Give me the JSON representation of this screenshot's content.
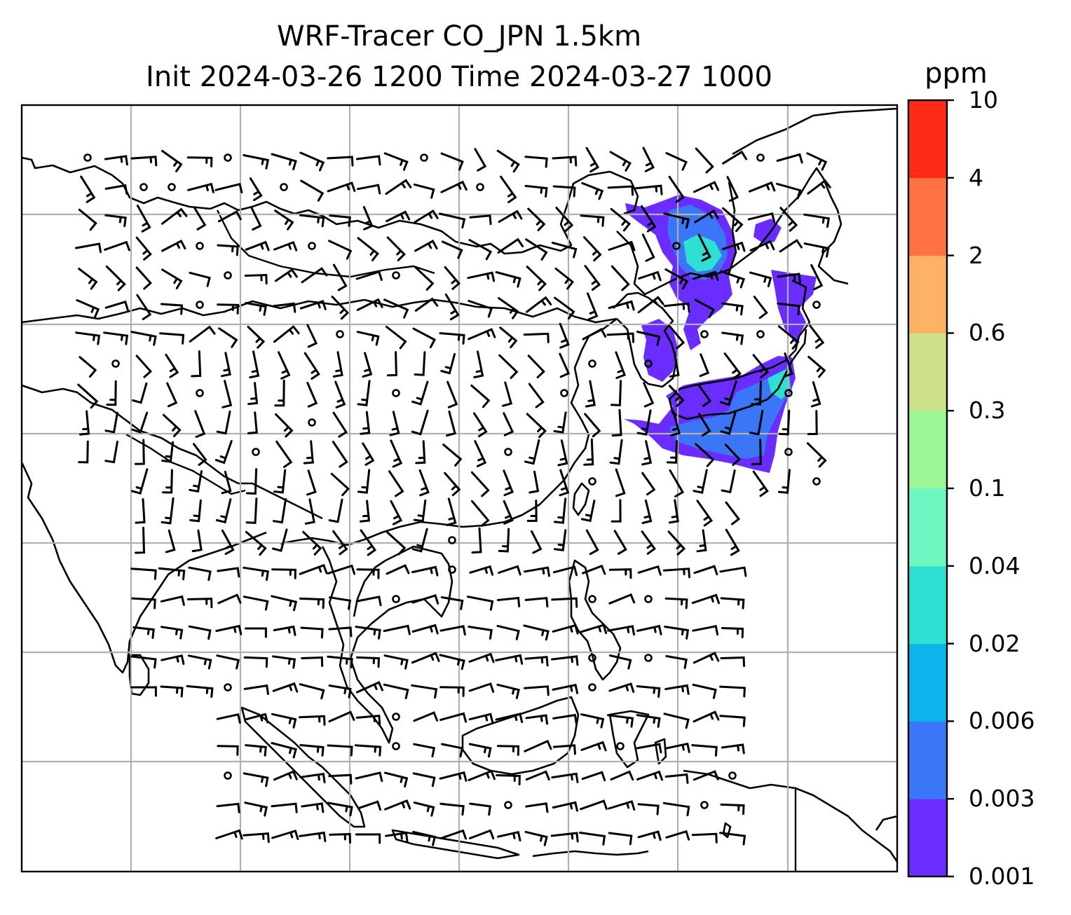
{
  "title": {
    "line1": "WRF-Tracer CO_JPN 1.5km",
    "line2": "Init 2024-03-26 1200 Time 2024-03-27 1000"
  },
  "map": {
    "projection": "regional map (Asia / western Pacific)",
    "gridlines": true,
    "coastline_color": "#000000",
    "grid_color": "#b0b0b0",
    "layers": [
      "coastlines",
      "country borders",
      "wind barbs",
      "CO tracer shading"
    ]
  },
  "colorbar": {
    "unit": "ppm",
    "labels": [
      "0.001",
      "0.003",
      "0.006",
      "0.02",
      "0.04",
      "0.1",
      "0.3",
      "0.6",
      "2",
      "4",
      "10"
    ],
    "colors": [
      "#6a2cff",
      "#3a76f5",
      "#0cb4ec",
      "#2ee0d2",
      "#6cf7c0",
      "#9bf796",
      "#cde08a",
      "#feb266",
      "#ff7342",
      "#ff2a18"
    ]
  },
  "plume_colors": {
    "low": "#6a2cff",
    "mid": "#3a76f5",
    "high": "#2ee0d2"
  }
}
